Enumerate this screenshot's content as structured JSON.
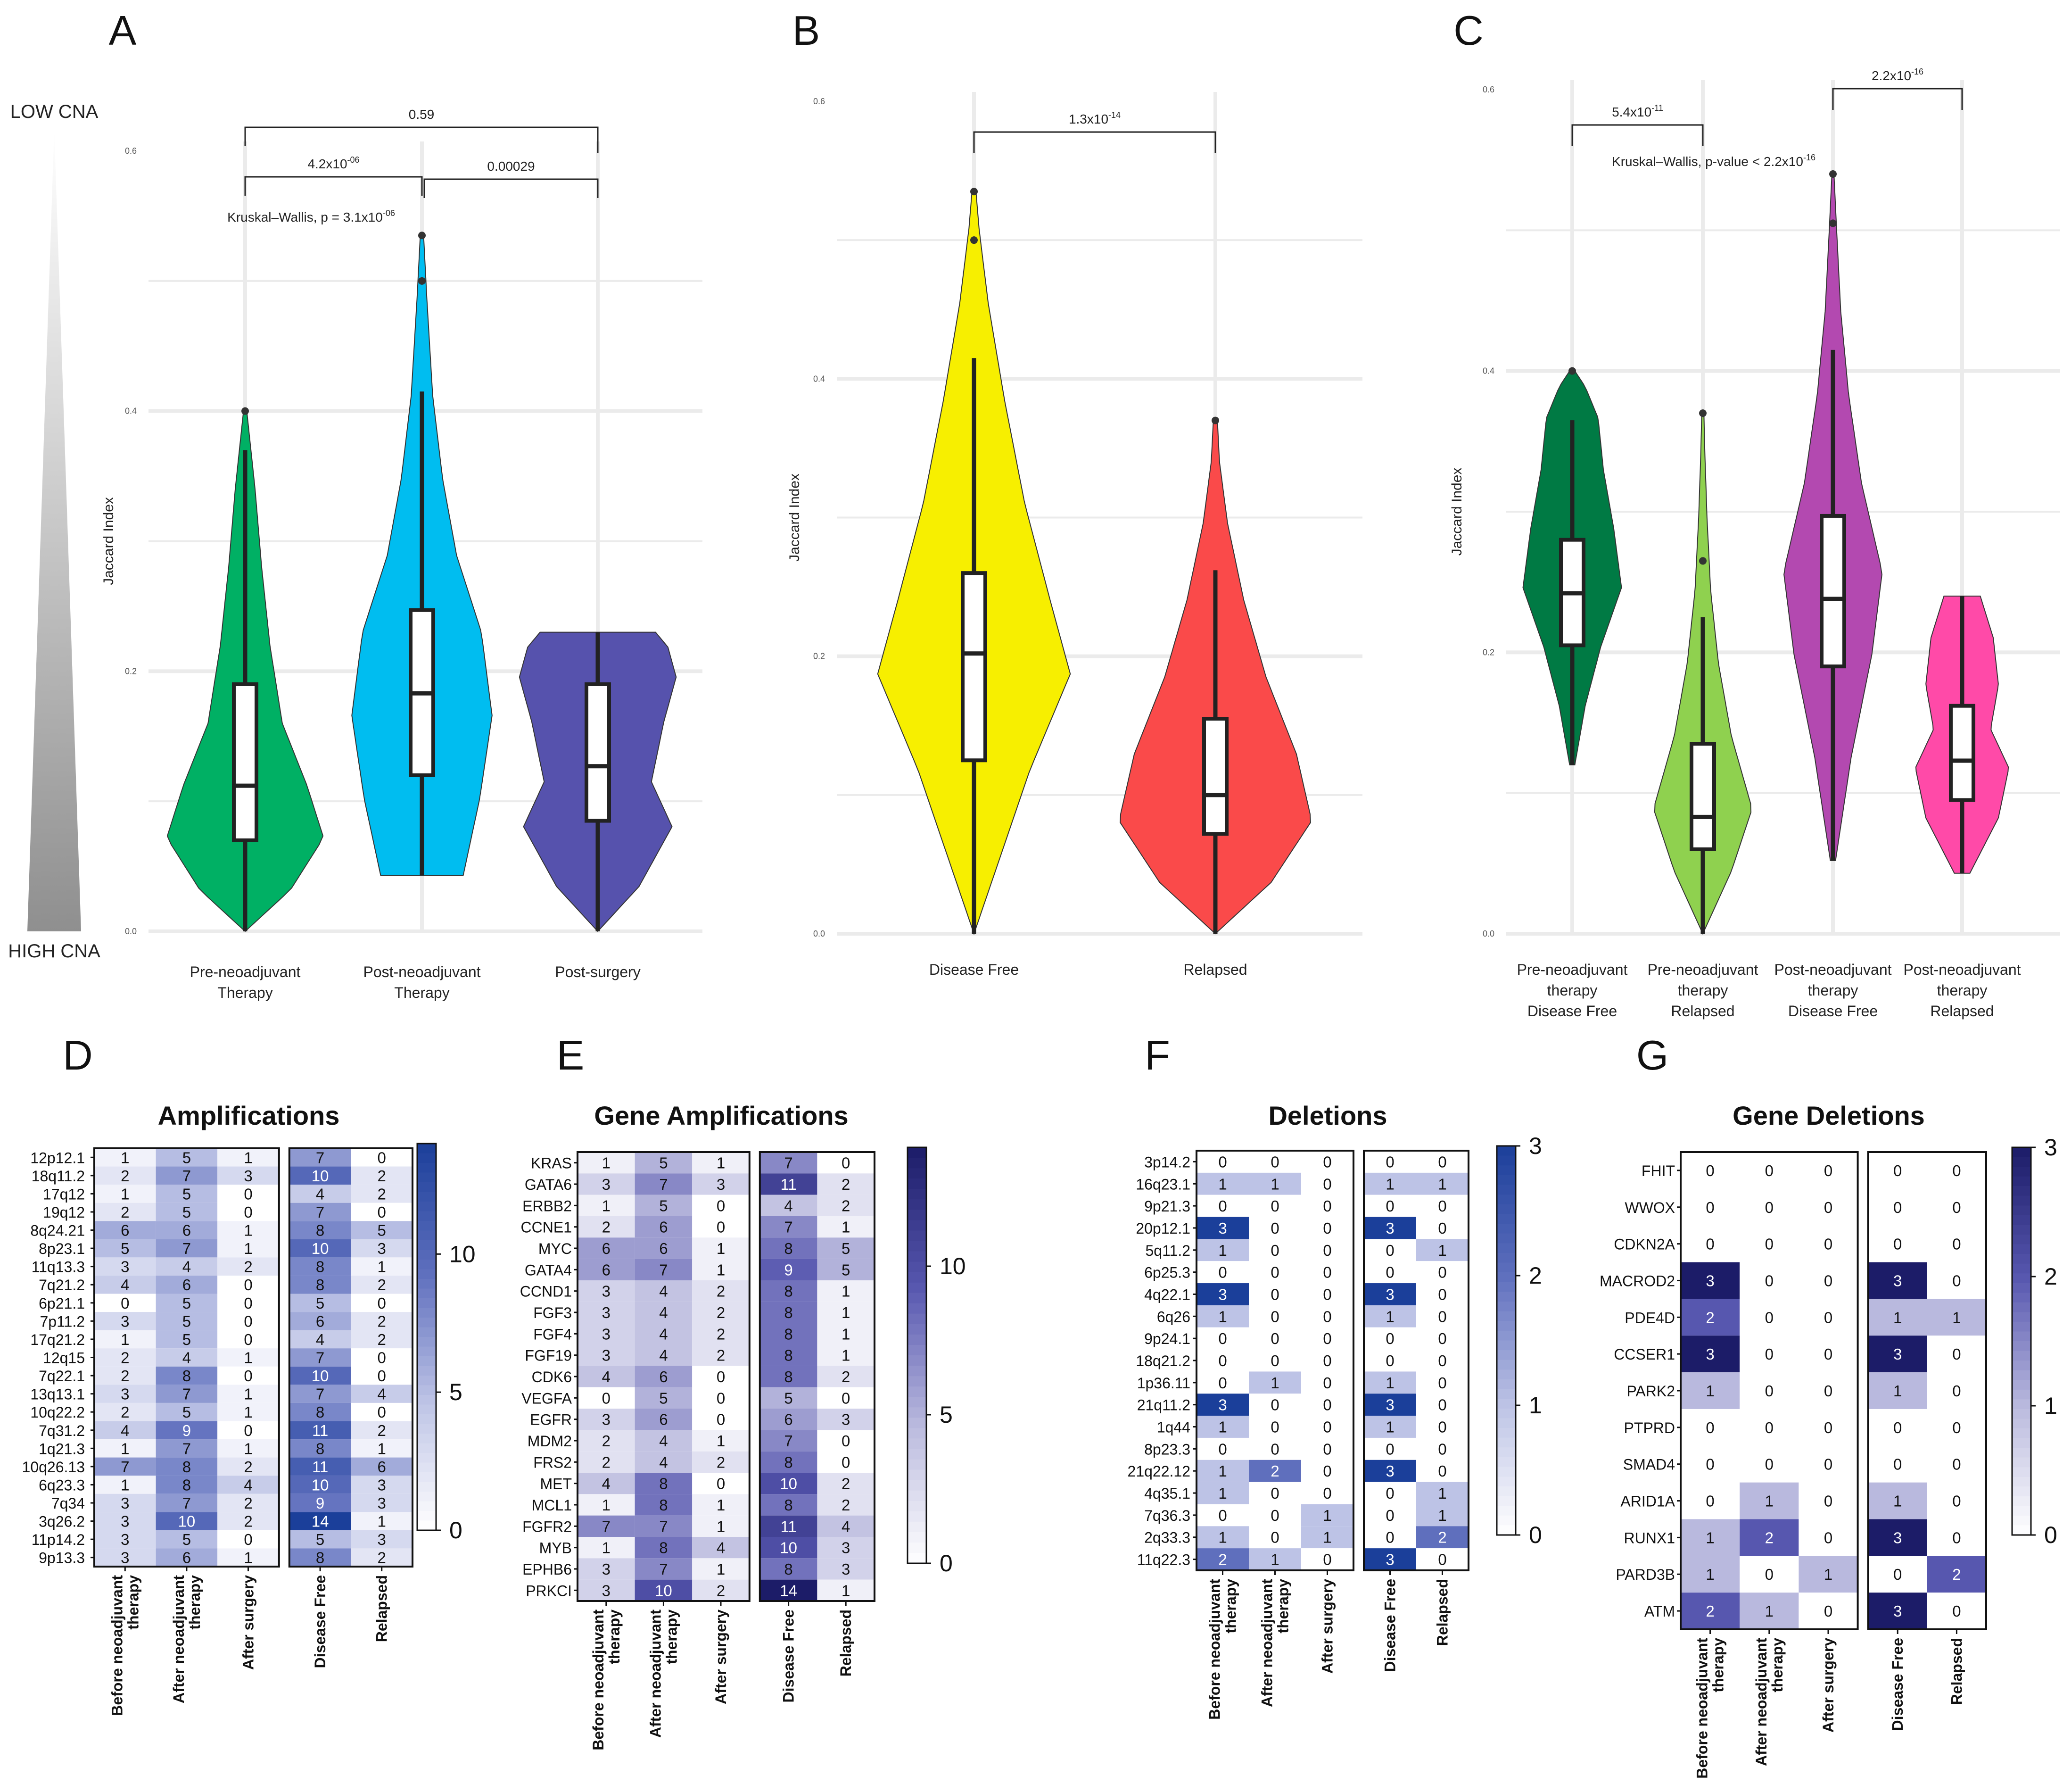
{
  "palette": {
    "cell_scale_colors": [
      "#ffffff",
      "#b9b9e0",
      "#5c5cb5",
      "#1f1f6e"
    ],
    "cell_scale_colors_blue": [
      "#ffffff",
      "#b7c2e4",
      "#3b64c0",
      "#1240a0"
    ]
  },
  "side_legend": {
    "top_label": "LOW CNA",
    "bottom_label": "HIGH CNA"
  },
  "chart_data": [
    {
      "panel": "A",
      "type": "violin",
      "ylabel": "Jaccard Index",
      "ylim": [
        0,
        0.6
      ],
      "yticks": [
        "0.0",
        "0.2",
        "0.4",
        "0.6"
      ],
      "categories": [
        "Pre-neoadjuvant\nTherapy",
        "Post-neoadjuvant\nTherapy",
        "Post-surgery"
      ],
      "colors": [
        "#00b064",
        "#00bdf0",
        "#5652ad"
      ],
      "box": [
        {
          "min": 0.0,
          "q1": 0.07,
          "median": 0.112,
          "q3": 0.19,
          "max": 0.37,
          "outliers": [
            0.4
          ]
        },
        {
          "min": 0.043,
          "q1": 0.12,
          "median": 0.183,
          "q3": 0.247,
          "max": 0.415,
          "outliers": [
            0.5,
            0.535
          ]
        },
        {
          "min": 0.0,
          "q1": 0.085,
          "median": 0.127,
          "q3": 0.19,
          "max": 0.23,
          "outliers": []
        }
      ],
      "annotations": [
        {
          "from": 0,
          "to": 2,
          "label": "0.59"
        },
        {
          "from": 1,
          "to": 2,
          "label": "0.00029"
        },
        {
          "from": 0,
          "to": 1,
          "label": "4.2x10",
          "sup": "-06"
        }
      ],
      "test_label": "Kruskal–Wallis, p = 3.1x10",
      "test_sup": "-06"
    },
    {
      "panel": "B",
      "type": "violin",
      "ylabel": "Jaccard Index",
      "ylim": [
        0,
        0.6
      ],
      "yticks": [
        "0.0",
        "0.2",
        "0.4",
        "0.6"
      ],
      "categories": [
        "Disease Free",
        "Relapsed"
      ],
      "colors": [
        "#f7ef00",
        "#fa4a4a"
      ],
      "box": [
        {
          "min": 0.0,
          "q1": 0.125,
          "median": 0.202,
          "q3": 0.26,
          "max": 0.415,
          "outliers": [
            0.5,
            0.535
          ]
        },
        {
          "min": 0.0,
          "q1": 0.072,
          "median": 0.1,
          "q3": 0.155,
          "max": 0.262,
          "outliers": [
            0.37
          ]
        }
      ],
      "annotations": [
        {
          "from": 0,
          "to": 1,
          "label": "1.3x10",
          "sup": "-14"
        }
      ]
    },
    {
      "panel": "C",
      "type": "violin",
      "ylabel": "Jaccard Index",
      "ylim": [
        0,
        0.6
      ],
      "yticks": [
        "0.0",
        "0.2",
        "0.4",
        "0.6"
      ],
      "categories": [
        "Pre-neoadjuvant\ntherapy\nDisease Free",
        "Pre-neoadjuvant\ntherapy\nRelapsed",
        "Post-neoadjuvant\ntherapy\nDisease Free",
        "Post-neoadjuvant\ntherapy\nRelapsed"
      ],
      "colors": [
        "#007a44",
        "#8fd14f",
        "#b349b0",
        "#ff4aa8"
      ],
      "box": [
        {
          "min": 0.12,
          "q1": 0.205,
          "median": 0.242,
          "q3": 0.28,
          "max": 0.365,
          "outliers": [
            0.4
          ]
        },
        {
          "min": 0.0,
          "q1": 0.06,
          "median": 0.083,
          "q3": 0.135,
          "max": 0.225,
          "outliers": [
            0.265,
            0.37
          ]
        },
        {
          "min": 0.052,
          "q1": 0.19,
          "median": 0.238,
          "q3": 0.297,
          "max": 0.415,
          "outliers": [
            0.505,
            0.54
          ]
        },
        {
          "min": 0.043,
          "q1": 0.095,
          "median": 0.123,
          "q3": 0.162,
          "max": 0.24,
          "outliers": []
        }
      ],
      "annotations": [
        {
          "from": 0,
          "to": 1,
          "label": "5.4x10",
          "sup": "-11"
        },
        {
          "from": 2,
          "to": 3,
          "label": "2.2x10",
          "sup": "-16"
        }
      ],
      "test_label": "Kruskal–Wallis, p-value < 2.2x10",
      "test_sup": "-16"
    },
    {
      "panel": "D",
      "type": "heatmap",
      "title": "Amplifications",
      "columns": [
        "Before neoadjuvant\ntherapy",
        "After neoadjuvant\ntherapy",
        "After surgery",
        "Disease Free",
        "Relapsed"
      ],
      "rows": [
        "12p12.1",
        "18q11.2",
        "17q12",
        "19q12",
        "8q24.21",
        "8p23.1",
        "11q13.3",
        "7q21.2",
        "6p21.1",
        "7p11.2",
        "17q21.2",
        "12q15",
        "7q22.1",
        "13q13.1",
        "10q22.2",
        "7q31.2",
        "1q21.3",
        "10q26.13",
        "6q23.3",
        "7q34",
        "3q26.2",
        "11p14.2",
        "9p13.3"
      ],
      "values": [
        [
          1,
          5,
          1,
          7,
          0
        ],
        [
          2,
          7,
          3,
          10,
          2
        ],
        [
          1,
          5,
          0,
          4,
          2
        ],
        [
          2,
          5,
          0,
          7,
          0
        ],
        [
          6,
          6,
          1,
          8,
          5
        ],
        [
          5,
          7,
          1,
          10,
          3
        ],
        [
          3,
          4,
          2,
          8,
          1
        ],
        [
          4,
          6,
          0,
          8,
          2
        ],
        [
          0,
          5,
          0,
          5,
          0
        ],
        [
          3,
          5,
          0,
          6,
          2
        ],
        [
          1,
          5,
          0,
          4,
          2
        ],
        [
          2,
          4,
          1,
          7,
          0
        ],
        [
          2,
          8,
          0,
          10,
          0
        ],
        [
          3,
          7,
          1,
          7,
          4
        ],
        [
          2,
          5,
          1,
          8,
          0
        ],
        [
          4,
          9,
          0,
          11,
          2
        ],
        [
          1,
          7,
          1,
          8,
          1
        ],
        [
          7,
          8,
          2,
          11,
          6
        ],
        [
          1,
          8,
          4,
          10,
          3
        ],
        [
          3,
          7,
          2,
          9,
          3
        ],
        [
          3,
          10,
          2,
          14,
          1
        ],
        [
          3,
          5,
          0,
          5,
          3
        ],
        [
          3,
          6,
          1,
          8,
          2
        ]
      ],
      "colorbar_max": 14,
      "colorbar_ticks": [
        "0",
        "5",
        "10"
      ]
    },
    {
      "panel": "E",
      "type": "heatmap",
      "title": "Gene Amplifications",
      "columns": [
        "Before neoadjuvant\ntherapy",
        "After neoadjuvant\ntherapy",
        "After surgery",
        "Disease Free",
        "Relapsed"
      ],
      "rows": [
        "KRAS",
        "GATA6",
        "ERBB2",
        "CCNE1",
        "MYC",
        "GATA4",
        "CCND1",
        "FGF3",
        "FGF4",
        "FGF19",
        "CDK6",
        "VEGFA",
        "EGFR",
        "MDM2",
        "FRS2",
        "MET",
        "MCL1",
        "FGFR2",
        "MYB",
        "EPHB6",
        "PRKCI"
      ],
      "values": [
        [
          1,
          5,
          1,
          7,
          0
        ],
        [
          3,
          7,
          3,
          11,
          2
        ],
        [
          1,
          5,
          0,
          4,
          2
        ],
        [
          2,
          6,
          0,
          7,
          1
        ],
        [
          6,
          6,
          1,
          8,
          5
        ],
        [
          6,
          7,
          1,
          9,
          5
        ],
        [
          3,
          4,
          2,
          8,
          1
        ],
        [
          3,
          4,
          2,
          8,
          1
        ],
        [
          3,
          4,
          2,
          8,
          1
        ],
        [
          3,
          4,
          2,
          8,
          1
        ],
        [
          4,
          6,
          0,
          8,
          2
        ],
        [
          0,
          5,
          0,
          5,
          0
        ],
        [
          3,
          6,
          0,
          6,
          3
        ],
        [
          2,
          4,
          1,
          7,
          0
        ],
        [
          2,
          4,
          2,
          8,
          0
        ],
        [
          4,
          8,
          0,
          10,
          2
        ],
        [
          1,
          8,
          1,
          8,
          2
        ],
        [
          7,
          7,
          1,
          11,
          4
        ],
        [
          1,
          8,
          4,
          10,
          3
        ],
        [
          3,
          7,
          1,
          8,
          3
        ],
        [
          3,
          10,
          2,
          14,
          1
        ]
      ],
      "colorbar_max": 14,
      "colorbar_ticks": [
        "0",
        "5",
        "10"
      ]
    },
    {
      "panel": "F",
      "type": "heatmap",
      "title": "Deletions",
      "columns": [
        "Before neoadjuvant\ntherapy",
        "After neoadjuvant\ntherapy",
        "After surgery",
        "Disease Free",
        "Relapsed"
      ],
      "rows": [
        "3p14.2",
        "16q23.1",
        "9p21.3",
        "20p12.1",
        "5q11.2",
        "6p25.3",
        "4q22.1",
        "6q26",
        "9p24.1",
        "18q21.2",
        "1p36.11",
        "21q11.2",
        "1q44",
        "8p23.3",
        "21q22.12",
        "4q35.1",
        "7q36.3",
        "2q33.3",
        "11q22.3"
      ],
      "values": [
        [
          0,
          0,
          0,
          0,
          0
        ],
        [
          1,
          1,
          0,
          1,
          1
        ],
        [
          0,
          0,
          0,
          0,
          0
        ],
        [
          3,
          0,
          0,
          3,
          0
        ],
        [
          1,
          0,
          0,
          0,
          1
        ],
        [
          0,
          0,
          0,
          0,
          0
        ],
        [
          3,
          0,
          0,
          3,
          0
        ],
        [
          1,
          0,
          0,
          1,
          0
        ],
        [
          0,
          0,
          0,
          0,
          0
        ],
        [
          0,
          0,
          0,
          0,
          0
        ],
        [
          0,
          1,
          0,
          1,
          0
        ],
        [
          3,
          0,
          0,
          3,
          0
        ],
        [
          1,
          0,
          0,
          1,
          0
        ],
        [
          0,
          0,
          0,
          0,
          0
        ],
        [
          1,
          2,
          0,
          3,
          0
        ],
        [
          1,
          0,
          0,
          0,
          1
        ],
        [
          0,
          0,
          1,
          0,
          1
        ],
        [
          1,
          0,
          1,
          0,
          2
        ],
        [
          2,
          1,
          0,
          3,
          0
        ]
      ],
      "colorbar_max": 3,
      "colorbar_ticks": [
        "0",
        "1",
        "2",
        "3"
      ]
    },
    {
      "panel": "G",
      "type": "heatmap",
      "title": "Gene Deletions",
      "columns": [
        "Before neoadjuvant\ntherapy",
        "After neoadjuvant\ntherapy",
        "After surgery",
        "Disease Free",
        "Relapsed"
      ],
      "rows": [
        "FHIT",
        "WWOX",
        "CDKN2A",
        "MACROD2",
        "PDE4D",
        "CCSER1",
        "PARK2",
        "PTPRD",
        "SMAD4",
        "ARID1A",
        "RUNX1",
        "PARD3B",
        "ATM"
      ],
      "values": [
        [
          0,
          0,
          0,
          0,
          0
        ],
        [
          0,
          0,
          0,
          0,
          0
        ],
        [
          0,
          0,
          0,
          0,
          0
        ],
        [
          3,
          0,
          0,
          3,
          0
        ],
        [
          2,
          0,
          0,
          1,
          1
        ],
        [
          3,
          0,
          0,
          3,
          0
        ],
        [
          1,
          0,
          0,
          1,
          0
        ],
        [
          0,
          0,
          0,
          0,
          0
        ],
        [
          0,
          0,
          0,
          0,
          0
        ],
        [
          0,
          1,
          0,
          1,
          0
        ],
        [
          1,
          2,
          0,
          3,
          0
        ],
        [
          1,
          0,
          1,
          0,
          2
        ],
        [
          2,
          1,
          0,
          3,
          0
        ]
      ],
      "colorbar_max": 3,
      "colorbar_ticks": [
        "0",
        "1",
        "2",
        "3"
      ]
    }
  ]
}
